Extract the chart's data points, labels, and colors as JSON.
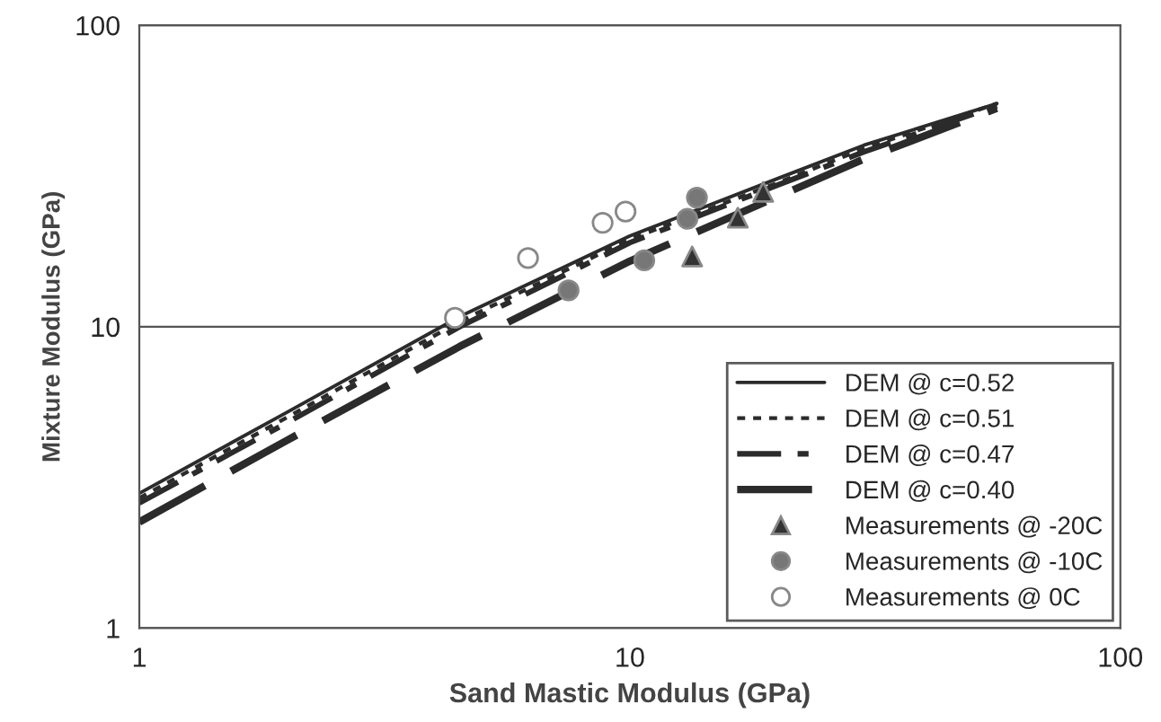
{
  "chart_data": {
    "type": "line",
    "xlabel": "Sand Mastic Modulus (GPa)",
    "ylabel": "Mixture Modulus (GPa)",
    "log": "xy",
    "xlim": [
      1,
      100
    ],
    "xticks": [
      1,
      10,
      100
    ],
    "ylim": [
      1,
      100
    ],
    "yticks": [
      1,
      10,
      100
    ],
    "grid": "y",
    "legend": "bottom right",
    "series": [
      {
        "name": "DEM @ c=0.52",
        "line_style": "solid",
        "color": "#2b2b2b",
        "x": [
          1,
          2,
          4.5,
          10,
          20,
          30,
          56
        ],
        "values": [
          2.8,
          5.2,
          10.8,
          20,
          31,
          40,
          55
        ]
      },
      {
        "name": "DEM @ c=0.51",
        "line_style": "dotted",
        "color": "#2b2b2b",
        "x": [
          1,
          2,
          4.5,
          10,
          20,
          30,
          56
        ],
        "values": [
          2.7,
          5.0,
          10.4,
          19.5,
          30,
          39,
          55
        ]
      },
      {
        "name": "DEM @ c=0.47",
        "line_style": "dashdot",
        "color": "#2b2b2b",
        "x": [
          1,
          2,
          4.5,
          10,
          20,
          30,
          56
        ],
        "values": [
          2.6,
          4.8,
          10,
          19,
          29.5,
          38,
          54
        ]
      },
      {
        "name": "DEM @ c=0.40",
        "line_style": "dashed",
        "color": "#2b2b2b",
        "x": [
          1,
          2,
          4.5,
          10,
          20,
          30,
          56
        ],
        "values": [
          2.25,
          4.2,
          8.6,
          16.5,
          27,
          36,
          53
        ]
      },
      {
        "name": "Measurements @ -20C",
        "type": "scatter",
        "marker": "triangle",
        "color": "#333333",
        "x": [
          13.4,
          16.6,
          18.7
        ],
        "values": [
          17.1,
          23,
          28
        ]
      },
      {
        "name": "Measurements @ -10C",
        "type": "scatter",
        "marker": "circle",
        "color": "#777777",
        "x": [
          7.5,
          10.7,
          13.1,
          13.7
        ],
        "values": [
          13.2,
          16.6,
          22.8,
          26.8
        ]
      },
      {
        "name": "Measurements @ 0C",
        "type": "scatter",
        "marker": "circle",
        "color": "#ffffff",
        "x": [
          4.4,
          6.2,
          8.8,
          9.8
        ],
        "values": [
          10.7,
          16.9,
          22.1,
          24.1
        ]
      }
    ]
  }
}
